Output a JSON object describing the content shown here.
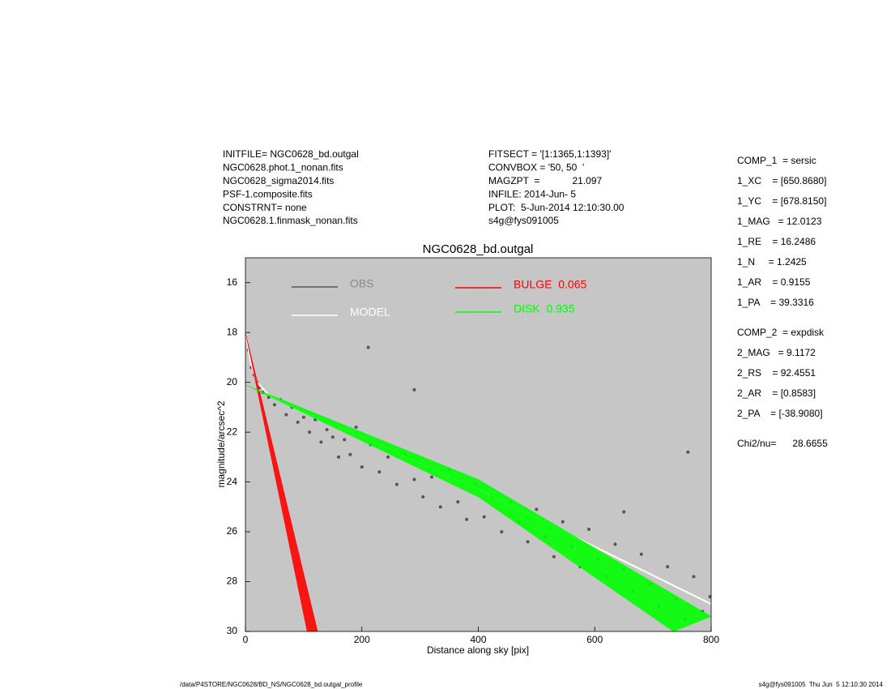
{
  "header": {
    "left": [
      "INITFILE= NGC0628_bd.outgal",
      "NGC0628.phot.1_nonan.fits",
      "NGC0628_sigma2014.fits",
      "PSF-1.composite.fits",
      "CONSTRNT= none",
      "NGC0628.1.finmask_nonan.fits"
    ],
    "middle": [
      "FITSECT = '[1:1365,1:1393]'",
      "CONVBOX = '50, 50  '",
      "MAGZPT  =            21.097",
      "INFILE: 2014-Jun- 5",
      "PLOT:  5-Jun-2014 12:10:30.00",
      "s4g@fys091005"
    ]
  },
  "parameters": [
    [
      "COMP_1  = sersic",
      "1_XC    = [650.8680]",
      "1_YC    = [678.8150]",
      "1_MAG   = 12.0123",
      "1_RE    = 16.2486",
      "1_N     = 1.2425",
      "1_AR    = 0.9155",
      "1_PA    = 39.3316"
    ],
    [
      "COMP_2  = expdisk",
      "2_MAG   = 9.1172",
      "2_RS    = 92.4551",
      "2_AR    = [0.8583]",
      "2_PA    = [-38.9080]"
    ],
    [
      "Chi2/nu=      28.6655"
    ]
  ],
  "footer": {
    "left": "/data/P4STORE/NGC0628/BD_NS/NGC0628_bd.outgal_profile",
    "right": "s4g@fys091005  Thu Jun  5 12:10:30 2014"
  },
  "chart_data": {
    "type": "scatter",
    "title": "NGC0628_bd.outgal",
    "x_label": "Distance along sky [pix]",
    "y_label": "magnitude/arcsec^2",
    "xlim": [
      0,
      800
    ],
    "xticks": [
      0,
      200,
      400,
      600,
      800
    ],
    "ylim": [
      30,
      15
    ],
    "yticks": [
      16,
      18,
      20,
      22,
      24,
      26,
      28,
      30
    ],
    "background": "#c6c6c6",
    "series": [
      {
        "name": "OBS",
        "color": "#555555",
        "type": "scatter",
        "x": [
          5,
          10,
          15,
          20,
          25,
          30,
          40,
          50,
          60,
          70,
          80,
          90,
          100,
          110,
          120,
          130,
          140,
          150,
          160,
          170,
          180,
          190,
          200,
          215,
          230,
          245,
          260,
          275,
          290,
          305,
          320,
          335,
          350,
          365,
          380,
          395,
          410,
          425,
          440,
          455,
          470,
          485,
          500,
          515,
          530,
          545,
          560,
          575,
          590,
          605,
          620,
          635,
          650,
          665,
          680,
          695,
          710,
          725,
          740,
          755,
          770,
          785,
          798,
          211,
          760,
          290,
          650
        ],
        "y": [
          18.7,
          19.4,
          19.7,
          20.0,
          20.2,
          20.4,
          20.6,
          20.9,
          20.7,
          21.3,
          21.0,
          21.6,
          21.4,
          22.0,
          21.5,
          22.4,
          21.9,
          22.2,
          23.0,
          22.3,
          22.9,
          21.8,
          23.4,
          22.5,
          23.6,
          23.0,
          24.1,
          22.9,
          23.9,
          24.6,
          23.8,
          25.0,
          23.5,
          24.8,
          25.5,
          24.1,
          25.4,
          24.6,
          26.0,
          24.8,
          25.6,
          26.4,
          25.1,
          26.2,
          27.0,
          25.6,
          26.6,
          27.4,
          25.9,
          27.1,
          27.8,
          26.5,
          27.5,
          28.4,
          26.9,
          28.1,
          29.0,
          27.4,
          28.7,
          29.5,
          27.8,
          29.2,
          28.6,
          18.6,
          22.8,
          20.3,
          25.2
        ]
      },
      {
        "name": "MODEL",
        "color": "#ffffff",
        "type": "line",
        "x": [
          0,
          10,
          20,
          40,
          100,
          200,
          400,
          600,
          800
        ],
        "y": [
          18.0,
          19.3,
          20.0,
          20.5,
          21.2,
          22.2,
          24.3,
          26.6,
          28.9
        ]
      },
      {
        "name": "BULGE  0.065",
        "color": "#ff0000",
        "type": "band",
        "edges": [
          {
            "x": [
              0,
              106
            ],
            "y": [
              18,
              30
            ]
          },
          {
            "x": [
              0,
              124
            ],
            "y": [
              18,
              30
            ]
          }
        ]
      },
      {
        "name": "DISK  0.935",
        "color": "#00ff00",
        "type": "band",
        "edges": [
          {
            "x": [
              0,
              400,
              800
            ],
            "y": [
              20.1,
              23.9,
              29.4
            ]
          },
          {
            "x": [
              0,
              400,
              735
            ],
            "y": [
              20.1,
              24.6,
              30
            ]
          }
        ]
      }
    ]
  }
}
